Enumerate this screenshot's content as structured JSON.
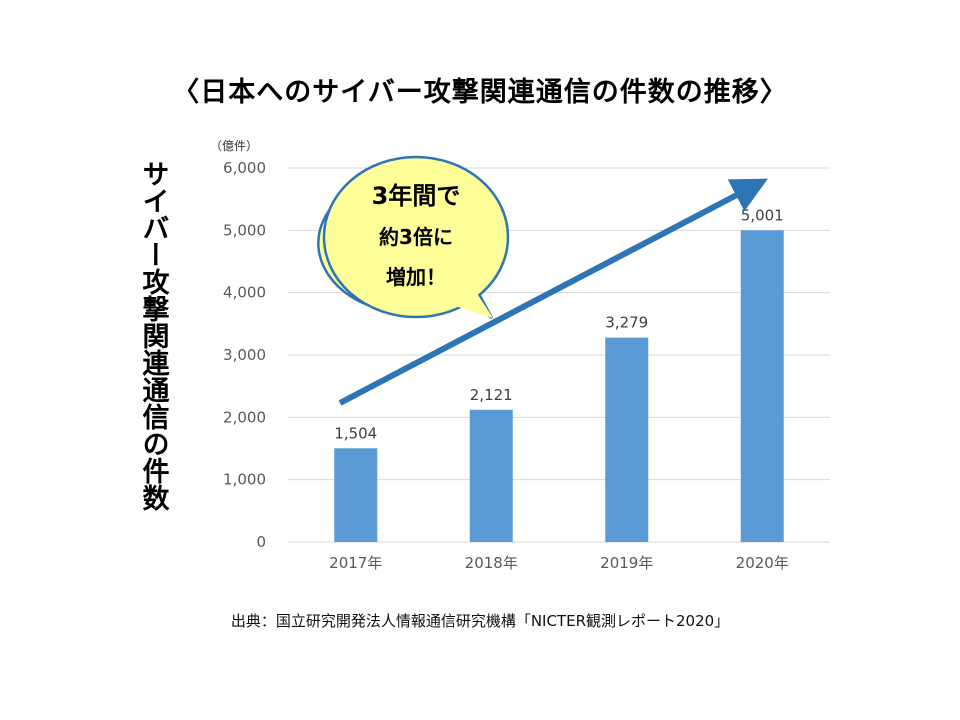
{
  "title": "〈日本へのサイバー攻撃関連通信の件数の推移〉",
  "unit_label": "（億件）",
  "source": "出典：国立研究開発法人情報通信研究機構「NICTER観測レポート2020」",
  "colors": {
    "bar": "#5b9bd5",
    "arrow": "#2e75b6",
    "bubble_fill": "#ffff99",
    "bubble_stroke": "#2e75b6",
    "grid": "#d9d9d9",
    "axis_text": "#595959"
  },
  "callout": {
    "line1": "3年間で",
    "line2": "約3倍に",
    "line3": "増加！"
  },
  "chart_data": {
    "type": "bar",
    "categories": [
      "2017年",
      "2018年",
      "2019年",
      "2020年"
    ],
    "values": [
      1504,
      2121,
      3279,
      5001
    ],
    "value_labels": [
      "1,504",
      "2,121",
      "3,279",
      "5,001"
    ],
    "ylabel": "サイバー攻撃関連通信の件数",
    "xlabel": "",
    "ylim": [
      0,
      6000
    ],
    "yticks": [
      0,
      1000,
      2000,
      3000,
      4000,
      5000,
      6000
    ],
    "ytick_labels": [
      "0",
      "1,000",
      "2,000",
      "3,000",
      "4,000",
      "5,000",
      "6,000"
    ],
    "grid": true,
    "legend": "none"
  }
}
